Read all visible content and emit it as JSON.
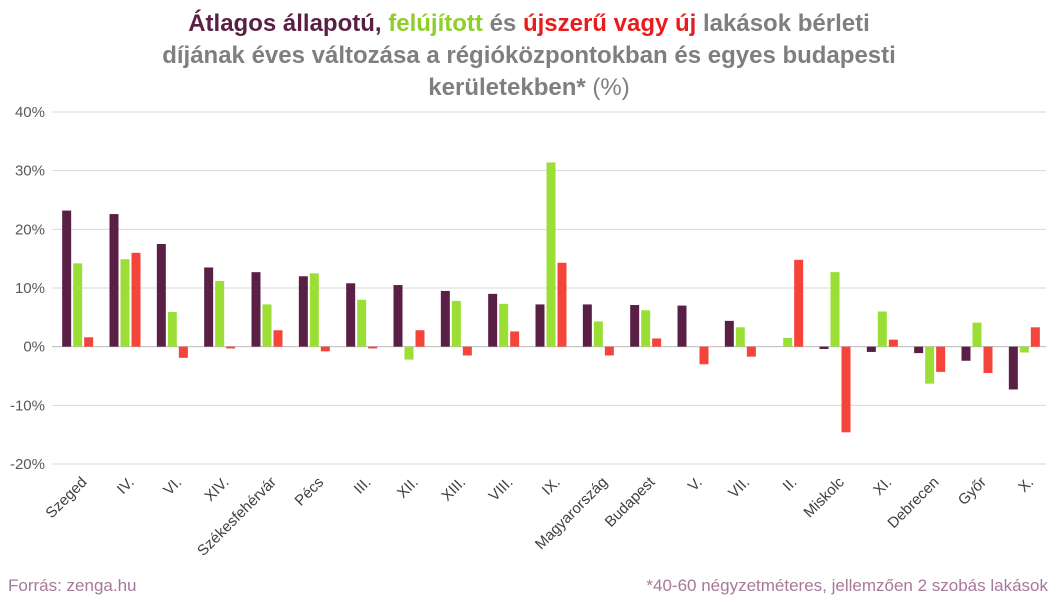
{
  "title": {
    "part1": "Átlagos állapotú,",
    "part2": "felújított",
    "part3": "és",
    "part4": "újszerű vagy új",
    "line1_rest": "lakások bérleti",
    "line2": "díjának éves változása a régióközpontokban és egyes budapesti",
    "line3_bold": "kerületekben*",
    "line3_unit": "(%)"
  },
  "colors": {
    "series1": "#5a1f45",
    "series2": "#9ade36",
    "series3": "#f5443a",
    "title_accent1": "#5a1f45",
    "title_accent2": "#8fcf2a",
    "title_accent3": "#e81c1c",
    "title_gray": "#7f7f7f",
    "footer": "#a5799a",
    "gridline": "#d9d9d9"
  },
  "footer": {
    "source": "Forrás: zenga.hu",
    "note": "*40-60 négyzetméteres, jellemzően 2 szobás lakások"
  },
  "chart_data": {
    "type": "bar",
    "categories": [
      "Szeged",
      "IV.",
      "VI.",
      "XIV.",
      "Székesfehérvár",
      "Pécs",
      "III.",
      "XII.",
      "XIII.",
      "VIII.",
      "IX.",
      "Magyarország",
      "Budapest",
      "V.",
      "VII.",
      "II.",
      "Miskolc",
      "XI.",
      "Debrecen",
      "Győr",
      "X."
    ],
    "series": [
      {
        "values": [
          23.2,
          22.6,
          17.5,
          13.5,
          12.7,
          12.0,
          10.8,
          10.5,
          9.5,
          9.0,
          7.2,
          7.2,
          7.1,
          7.0,
          4.4,
          0.0,
          -0.4,
          -0.9,
          -1.1,
          -2.4,
          -7.3
        ]
      },
      {
        "values": [
          14.2,
          14.9,
          5.9,
          11.2,
          7.2,
          12.5,
          8.0,
          -2.2,
          7.8,
          7.3,
          31.4,
          4.3,
          6.2,
          0.0,
          3.3,
          1.5,
          12.7,
          6.0,
          -6.3,
          4.1,
          -1.0
        ]
      },
      {
        "values": [
          1.6,
          16.0,
          -1.9,
          -0.3,
          2.8,
          -0.8,
          -0.3,
          2.8,
          -1.5,
          2.6,
          14.3,
          -1.5,
          1.4,
          -3.0,
          -1.7,
          14.8,
          -14.6,
          1.2,
          -4.3,
          -4.5,
          3.3
        ]
      }
    ],
    "ylim": [
      -20,
      40
    ],
    "yticks": [
      40,
      30,
      20,
      10,
      0,
      -10,
      -20
    ],
    "ytick_labels": [
      "40%",
      "30%",
      "20%",
      "10%",
      "0%",
      "-10%",
      "-20%"
    ],
    "grid": true,
    "legend": "none"
  }
}
